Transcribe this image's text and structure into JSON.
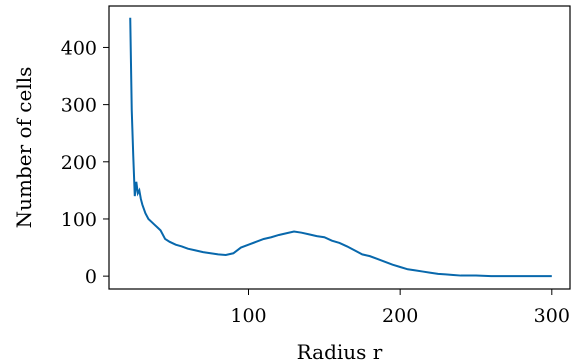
{
  "chart_data": {
    "type": "line",
    "title": "",
    "xlabel": "Radius r",
    "ylabel": "Number of cells",
    "xlim": [
      8,
      312
    ],
    "ylim": [
      -22.5,
      472.5
    ],
    "xticks": [
      100,
      200,
      300
    ],
    "yticks": [
      0,
      100,
      200,
      300,
      400
    ],
    "xtick_labels": [
      "100",
      "200",
      "300"
    ],
    "ytick_labels": [
      "0",
      "100",
      "200",
      "300",
      "400"
    ],
    "grid": false,
    "legend": "none",
    "series_color": "#0868ac",
    "series": [
      {
        "x": [
          22,
          23,
          24,
          25,
          26,
          27,
          28,
          29,
          30,
          32,
          34,
          36,
          38,
          40,
          42,
          45,
          48,
          52,
          56,
          60,
          65,
          70,
          75,
          80,
          85,
          90,
          95,
          100,
          105,
          110,
          115,
          120,
          125,
          130,
          135,
          140,
          145,
          150,
          155,
          160,
          165,
          170,
          175,
          180,
          185,
          190,
          195,
          200,
          205,
          210,
          215,
          220,
          225,
          230,
          235,
          240,
          250,
          260,
          270,
          280,
          290,
          300
        ],
        "y": [
          452,
          290,
          210,
          140,
          165,
          145,
          150,
          135,
          125,
          110,
          100,
          95,
          90,
          85,
          80,
          65,
          60,
          55,
          52,
          48,
          45,
          42,
          40,
          38,
          37,
          40,
          50,
          55,
          60,
          65,
          68,
          72,
          75,
          78,
          76,
          73,
          70,
          68,
          62,
          58,
          52,
          45,
          38,
          35,
          30,
          25,
          20,
          16,
          12,
          10,
          8,
          6,
          4,
          3,
          2,
          1,
          1,
          0,
          0,
          0,
          0,
          0
        ]
      }
    ]
  }
}
